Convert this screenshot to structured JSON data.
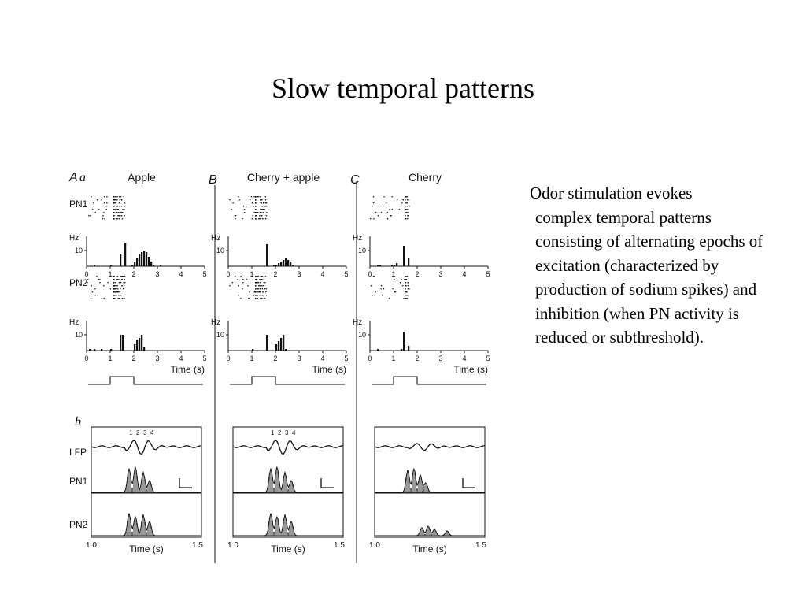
{
  "slide": {
    "title": "Slow temporal patterns",
    "body_first": "Odor stimulation evokes",
    "body_rest": "complex temporal patterns consisting of alternating epochs of excitation (characterized by production of sodium spikes) and inhibition (when PN activity is reduced or subthreshold)."
  },
  "figure": {
    "panel_a": {
      "letter": "A",
      "sub_letter": "a",
      "columns": [
        {
          "letter": "",
          "odor": "Apple"
        },
        {
          "letter": "B",
          "odor": "Cherry + apple"
        },
        {
          "letter": "C",
          "odor": "Cherry"
        }
      ],
      "rows": {
        "pn1": "PN1",
        "pn2": "PN2"
      },
      "hz_label": "Hz",
      "hz_tick": "10",
      "x_ticks": [
        "0",
        "1",
        "2",
        "3",
        "4",
        "5"
      ],
      "time_label": "Time (s)",
      "histograms": {
        "pn1": [
          [
            0,
            0,
            0,
            1,
            0,
            0,
            0,
            0,
            0,
            0,
            1,
            0,
            0,
            0,
            8,
            0,
            15,
            0,
            0,
            1,
            3,
            5,
            8,
            9,
            10,
            9,
            6,
            3,
            1,
            0,
            0,
            1,
            0,
            0,
            0,
            0,
            0,
            0,
            0,
            0,
            0,
            0,
            0,
            0,
            0,
            0,
            0,
            0,
            0,
            0
          ],
          [
            0,
            0,
            0,
            0,
            0,
            0,
            0,
            0,
            0,
            0,
            0,
            0,
            0,
            0,
            0,
            0,
            14,
            0,
            0,
            1,
            1,
            2,
            3,
            4,
            5,
            4,
            3,
            1,
            0,
            0,
            0,
            0,
            0,
            0,
            0,
            0,
            0,
            0,
            0,
            0,
            0,
            0,
            0,
            0,
            0,
            0,
            0,
            0,
            0,
            0
          ],
          [
            0,
            0,
            0,
            1,
            1,
            0,
            0,
            0,
            0,
            1,
            1,
            2,
            0,
            0,
            13,
            0,
            5,
            0,
            0,
            0,
            0,
            0,
            0,
            0,
            0,
            0,
            0,
            0,
            0,
            0,
            0,
            0,
            0,
            0,
            0,
            0,
            0,
            0,
            0,
            0,
            0,
            0,
            0,
            0,
            0,
            0,
            0,
            0,
            0,
            0
          ]
        ],
        "pn2": [
          [
            0,
            1,
            0,
            1,
            0,
            0,
            1,
            0,
            0,
            0,
            1,
            0,
            0,
            0,
            10,
            10,
            0,
            0,
            0,
            0,
            4,
            7,
            8,
            10,
            2,
            0,
            0,
            0,
            0,
            0,
            0,
            0,
            0,
            0,
            0,
            0,
            0,
            0,
            0,
            0,
            0,
            0,
            0,
            0,
            0,
            0,
            0,
            0,
            0,
            0
          ],
          [
            0,
            0,
            0,
            0,
            0,
            0,
            0,
            0,
            0,
            0,
            1,
            0,
            0,
            0,
            0,
            0,
            10,
            0,
            0,
            0,
            4,
            6,
            8,
            10,
            1,
            0,
            0,
            0,
            0,
            0,
            0,
            0,
            0,
            0,
            0,
            0,
            0,
            0,
            0,
            0,
            0,
            0,
            0,
            0,
            0,
            0,
            0,
            0,
            0,
            0
          ],
          [
            0,
            0,
            0,
            1,
            0,
            0,
            0,
            0,
            0,
            0,
            0,
            0,
            0,
            1,
            12,
            0,
            3,
            0,
            0,
            0,
            0,
            0,
            0,
            0,
            0,
            0,
            0,
            0,
            0,
            0,
            0,
            0,
            0,
            0,
            0,
            0,
            0,
            0,
            0,
            0,
            0,
            0,
            0,
            0,
            0,
            0,
            0,
            0,
            0,
            0
          ]
        ]
      }
    },
    "panel_b": {
      "letter": "b",
      "rows": {
        "lfp": "LFP",
        "pn1": "PN1",
        "pn2": "PN2"
      },
      "cycle_labels": [
        "1",
        "2",
        "3",
        "4"
      ],
      "x_ticks": [
        "1.0",
        "1.5"
      ],
      "time_label": "Time (s)"
    }
  }
}
